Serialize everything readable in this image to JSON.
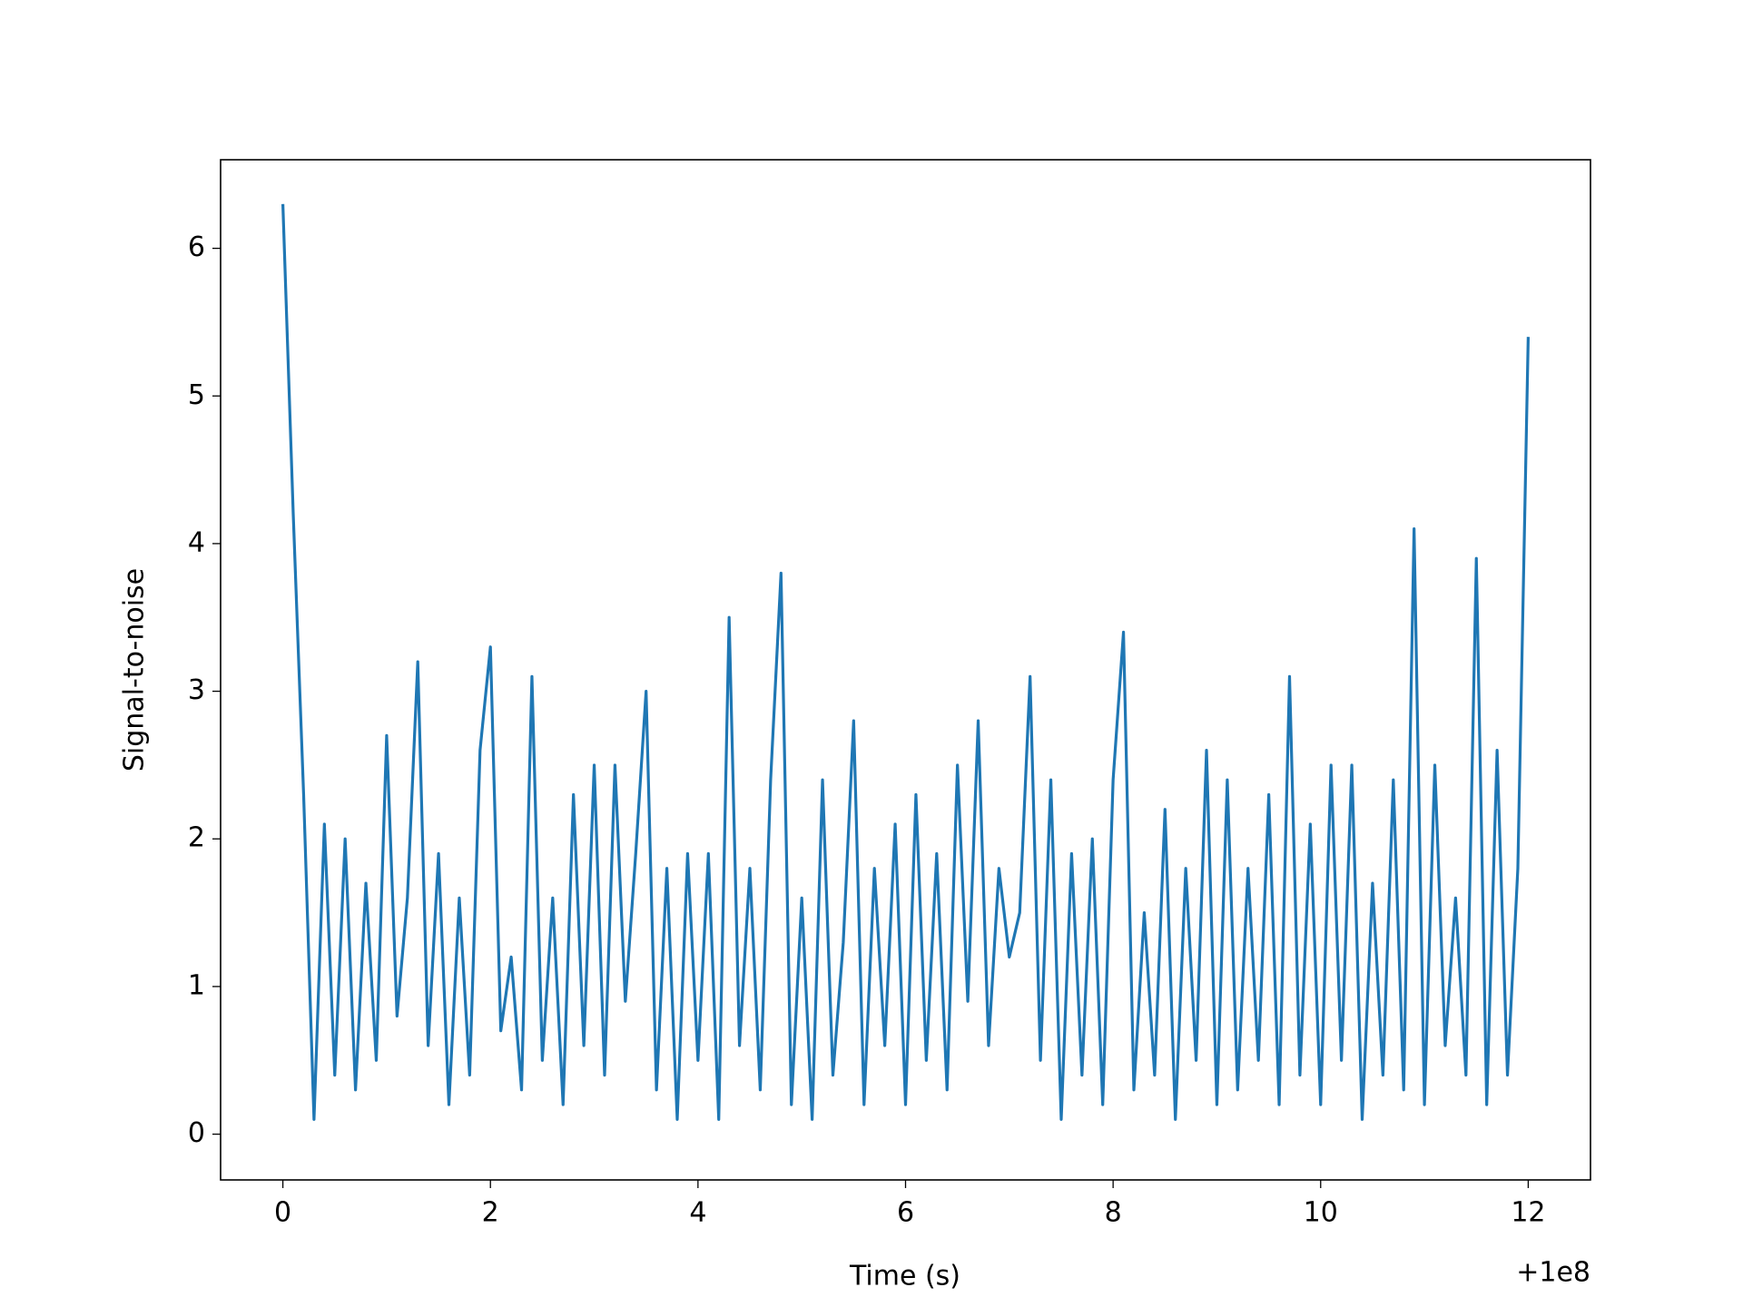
{
  "chart_data": {
    "type": "line",
    "xlabel": "Time (s)",
    "ylabel": "Signal-to-noise",
    "x_offset_label": "+1e8",
    "color": "#1f77b4",
    "x": [
      0.0,
      0.1,
      0.2,
      0.3,
      0.4,
      0.5,
      0.6,
      0.7,
      0.8,
      0.9,
      1.0,
      1.1,
      1.2,
      1.3,
      1.4,
      1.5,
      1.6,
      1.7,
      1.8,
      1.9,
      2.0,
      2.1,
      2.2,
      2.3,
      2.4,
      2.5,
      2.6,
      2.7,
      2.8,
      2.9,
      3.0,
      3.1,
      3.2,
      3.3,
      3.4,
      3.5,
      3.6,
      3.7,
      3.8,
      3.9,
      4.0,
      4.1,
      4.2,
      4.3,
      4.4,
      4.5,
      4.6,
      4.7,
      4.8,
      4.9,
      5.0,
      5.1,
      5.2,
      5.3,
      5.4,
      5.5,
      5.6,
      5.7,
      5.8,
      5.9,
      6.0,
      6.1,
      6.2,
      6.3,
      6.4,
      6.5,
      6.6,
      6.7,
      6.8,
      6.9,
      7.0,
      7.1,
      7.2,
      7.3,
      7.4,
      7.5,
      7.6,
      7.7,
      7.8,
      7.9,
      8.0,
      8.1,
      8.2,
      8.3,
      8.4,
      8.5,
      8.6,
      8.7,
      8.8,
      8.9,
      9.0,
      9.1,
      9.2,
      9.3,
      9.4,
      9.5,
      9.6,
      9.7,
      9.8,
      9.9,
      10.0,
      10.1,
      10.2,
      10.3,
      10.4,
      10.5,
      10.6,
      10.7,
      10.8,
      10.9,
      11.0,
      11.1,
      11.2,
      11.3,
      11.4,
      11.5,
      11.6,
      11.7,
      11.8,
      11.9,
      12.0
    ],
    "values": [
      6.3,
      4.2,
      2.3,
      0.1,
      2.1,
      0.4,
      2.0,
      0.3,
      1.7,
      0.5,
      2.7,
      0.8,
      1.6,
      3.2,
      0.6,
      1.9,
      0.2,
      1.6,
      0.4,
      2.6,
      3.3,
      0.7,
      1.2,
      0.3,
      3.1,
      0.5,
      1.6,
      0.2,
      2.3,
      0.6,
      2.5,
      0.4,
      2.5,
      0.9,
      1.9,
      3.0,
      0.3,
      1.8,
      0.1,
      1.9,
      0.5,
      1.9,
      0.1,
      3.5,
      0.6,
      1.8,
      0.3,
      2.4,
      3.8,
      0.2,
      1.6,
      0.1,
      2.4,
      0.4,
      1.3,
      2.8,
      0.2,
      1.8,
      0.6,
      2.1,
      0.2,
      2.3,
      0.5,
      1.9,
      0.3,
      2.5,
      0.9,
      2.8,
      0.6,
      1.8,
      1.2,
      1.5,
      3.1,
      0.5,
      2.4,
      0.1,
      1.9,
      0.4,
      2.0,
      0.2,
      2.4,
      3.4,
      0.3,
      1.5,
      0.4,
      2.2,
      0.1,
      1.8,
      0.5,
      2.6,
      0.2,
      2.4,
      0.3,
      1.8,
      0.5,
      2.3,
      0.2,
      3.1,
      0.4,
      2.1,
      0.2,
      2.5,
      0.5,
      2.5,
      0.1,
      1.7,
      0.4,
      2.4,
      0.3,
      4.1,
      0.2,
      2.5,
      0.6,
      1.6,
      0.4,
      3.9,
      0.2,
      2.6,
      0.4,
      1.8,
      5.4
    ],
    "xlim": [
      -0.6,
      12.6
    ],
    "ylim": [
      -0.31,
      6.6
    ],
    "xticks": [
      0,
      2,
      4,
      6,
      8,
      10,
      12
    ],
    "yticks": [
      0,
      1,
      2,
      3,
      4,
      5,
      6
    ]
  }
}
